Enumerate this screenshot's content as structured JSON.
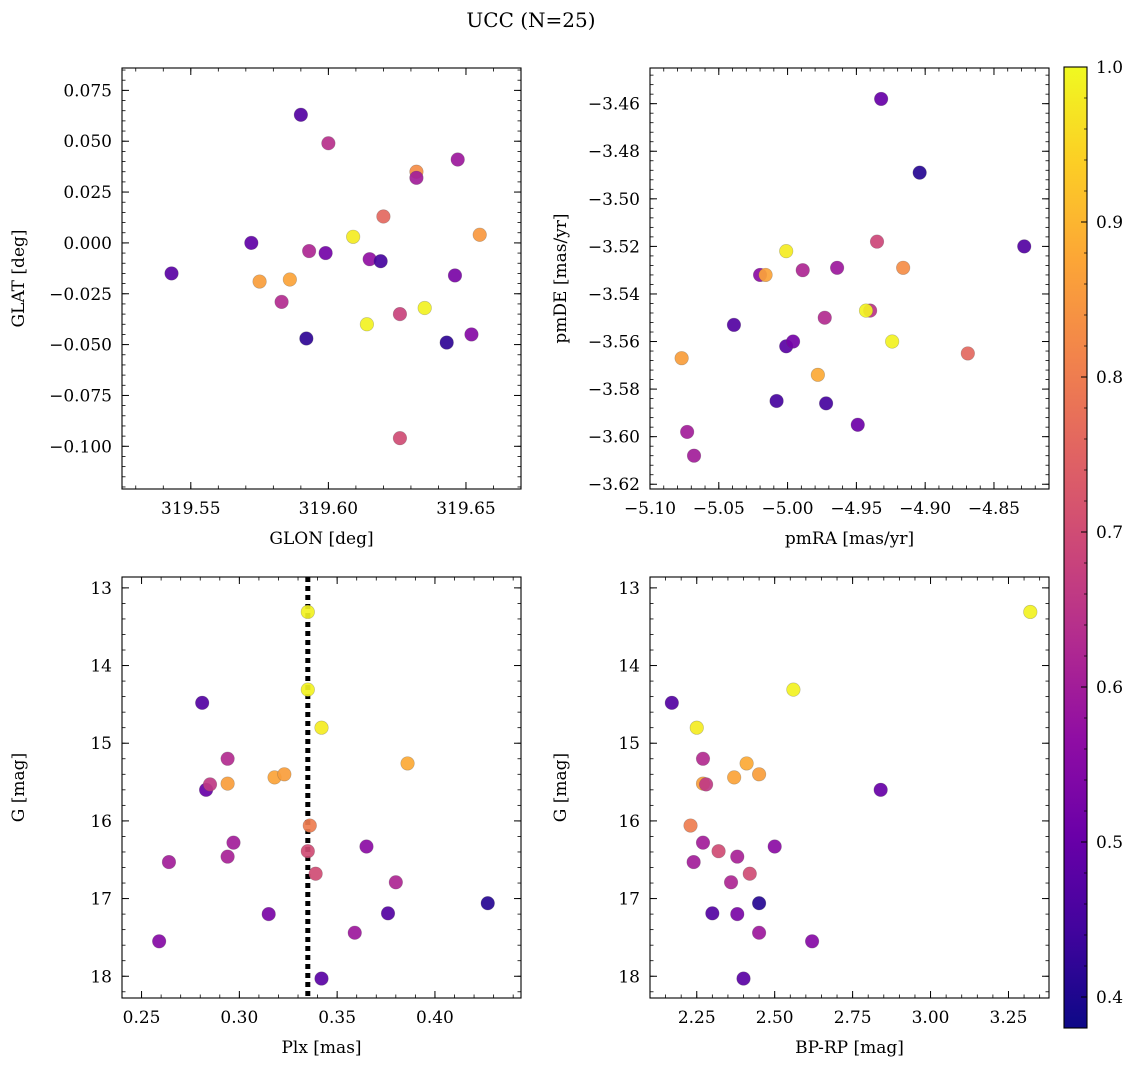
{
  "title": "UCC (N=25)",
  "colorbar": {
    "colormap": "plasma",
    "range": [
      0.38,
      1.0
    ],
    "ticks": [
      0.4,
      0.5,
      0.6,
      0.7,
      0.8,
      0.9,
      1.0
    ],
    "tick_labels": [
      "0.4",
      "0.5",
      "0.6",
      "0.7",
      "0.8",
      "0.9",
      "1.0"
    ]
  },
  "chart_data": [
    {
      "type": "scatter",
      "xlabel": "GLON [deg]",
      "ylabel": "GLAT [deg]",
      "xlim": [
        319.525,
        319.67
      ],
      "ylim": [
        -0.121,
        0.086
      ],
      "x_ticks": [
        319.55,
        319.6,
        319.65
      ],
      "x_tick_labels": [
        "319.55",
        "319.60",
        "319.65"
      ],
      "y_ticks": [
        0.075,
        0.05,
        0.025,
        0.0,
        -0.025,
        -0.05,
        -0.075,
        -0.1
      ],
      "y_tick_labels": [
        "0.075",
        "0.050",
        "0.025",
        "0.000",
        "−0.025",
        "−0.050",
        "−0.075",
        "−0.100"
      ],
      "points": [
        {
          "x": 319.543,
          "y": -0.015,
          "c": 0.48
        },
        {
          "x": 319.572,
          "y": 0.0,
          "c": 0.49
        },
        {
          "x": 319.575,
          "y": -0.019,
          "c": 0.86
        },
        {
          "x": 319.583,
          "y": -0.029,
          "c": 0.63
        },
        {
          "x": 319.586,
          "y": -0.018,
          "c": 0.87
        },
        {
          "x": 319.59,
          "y": 0.063,
          "c": 0.47
        },
        {
          "x": 319.592,
          "y": -0.047,
          "c": 0.42
        },
        {
          "x": 319.593,
          "y": -0.004,
          "c": 0.62
        },
        {
          "x": 319.599,
          "y": -0.005,
          "c": 0.52
        },
        {
          "x": 319.6,
          "y": 0.049,
          "c": 0.64
        },
        {
          "x": 319.609,
          "y": 0.003,
          "c": 0.98
        },
        {
          "x": 319.614,
          "y": -0.04,
          "c": 0.99
        },
        {
          "x": 319.615,
          "y": -0.008,
          "c": 0.57
        },
        {
          "x": 319.619,
          "y": -0.009,
          "c": 0.45
        },
        {
          "x": 319.62,
          "y": 0.013,
          "c": 0.76
        },
        {
          "x": 319.626,
          "y": -0.035,
          "c": 0.68
        },
        {
          "x": 319.626,
          "y": -0.096,
          "c": 0.7
        },
        {
          "x": 319.632,
          "y": 0.035,
          "c": 0.83
        },
        {
          "x": 319.632,
          "y": 0.032,
          "c": 0.6
        },
        {
          "x": 319.635,
          "y": -0.032,
          "c": 0.99
        },
        {
          "x": 319.643,
          "y": -0.049,
          "c": 0.42
        },
        {
          "x": 319.646,
          "y": -0.016,
          "c": 0.53
        },
        {
          "x": 319.647,
          "y": 0.041,
          "c": 0.59
        },
        {
          "x": 319.652,
          "y": -0.045,
          "c": 0.55
        },
        {
          "x": 319.655,
          "y": 0.004,
          "c": 0.85
        }
      ]
    },
    {
      "type": "scatter",
      "xlabel": "pmRA [mas/yr]",
      "ylabel": "pmDE [mas/yr]",
      "xlim": [
        -5.1,
        -4.81
      ],
      "ylim": [
        -3.622,
        -3.445
      ],
      "x_ticks": [
        -5.1,
        -5.05,
        -5.0,
        -4.95,
        -4.9,
        -4.85
      ],
      "x_tick_labels": [
        "−5.10",
        "−5.05",
        "−5.00",
        "−4.95",
        "−4.90",
        "−4.85"
      ],
      "y_ticks": [
        -3.46,
        -3.48,
        -3.5,
        -3.52,
        -3.54,
        -3.56,
        -3.58,
        -3.6,
        -3.62
      ],
      "y_tick_labels": [
        "−3.46",
        "−3.48",
        "−3.50",
        "−3.52",
        "−3.54",
        "−3.56",
        "−3.58",
        "−3.60",
        "−3.62"
      ],
      "points": [
        {
          "x": -5.077,
          "y": -3.567,
          "c": 0.86
        },
        {
          "x": -5.073,
          "y": -3.598,
          "c": 0.6
        },
        {
          "x": -5.068,
          "y": -3.608,
          "c": 0.6
        },
        {
          "x": -5.039,
          "y": -3.553,
          "c": 0.47
        },
        {
          "x": -5.02,
          "y": -3.532,
          "c": 0.56
        },
        {
          "x": -5.016,
          "y": -3.532,
          "c": 0.87
        },
        {
          "x": -5.008,
          "y": -3.585,
          "c": 0.45
        },
        {
          "x": -5.001,
          "y": -3.522,
          "c": 0.98
        },
        {
          "x": -5.001,
          "y": -3.562,
          "c": 0.48
        },
        {
          "x": -4.996,
          "y": -3.56,
          "c": 0.52
        },
        {
          "x": -4.989,
          "y": -3.53,
          "c": 0.62
        },
        {
          "x": -4.978,
          "y": -3.574,
          "c": 0.88
        },
        {
          "x": -4.973,
          "y": -3.55,
          "c": 0.63
        },
        {
          "x": -4.972,
          "y": -3.586,
          "c": 0.45
        },
        {
          "x": -4.964,
          "y": -3.529,
          "c": 0.59
        },
        {
          "x": -4.949,
          "y": -3.595,
          "c": 0.51
        },
        {
          "x": -4.94,
          "y": -3.547,
          "c": 0.65
        },
        {
          "x": -4.943,
          "y": -3.547,
          "c": 0.99
        },
        {
          "x": -4.935,
          "y": -3.518,
          "c": 0.69
        },
        {
          "x": -4.932,
          "y": -3.458,
          "c": 0.5
        },
        {
          "x": -4.924,
          "y": -3.56,
          "c": 0.99
        },
        {
          "x": -4.916,
          "y": -3.529,
          "c": 0.83
        },
        {
          "x": -4.904,
          "y": -3.489,
          "c": 0.41
        },
        {
          "x": -4.869,
          "y": -3.565,
          "c": 0.76
        },
        {
          "x": -4.828,
          "y": -3.52,
          "c": 0.47
        }
      ]
    },
    {
      "type": "scatter",
      "xlabel": "Plx [mas]",
      "ylabel": "G [mag]",
      "xlim": [
        0.24,
        0.444
      ],
      "ylim": [
        18.28,
        12.86
      ],
      "x_ticks": [
        0.25,
        0.3,
        0.35,
        0.4
      ],
      "x_tick_labels": [
        "0.25",
        "0.30",
        "0.35",
        "0.40"
      ],
      "y_ticks": [
        13,
        14,
        15,
        16,
        17,
        18
      ],
      "y_tick_labels": [
        "13",
        "14",
        "15",
        "16",
        "17",
        "18"
      ],
      "reference_line": {
        "x": 0.335,
        "style": "dotted"
      },
      "points": [
        {
          "x": 0.259,
          "y": 17.55,
          "c": 0.55
        },
        {
          "x": 0.264,
          "y": 16.53,
          "c": 0.6
        },
        {
          "x": 0.281,
          "y": 14.48,
          "c": 0.47
        },
        {
          "x": 0.283,
          "y": 15.6,
          "c": 0.5
        },
        {
          "x": 0.285,
          "y": 15.53,
          "c": 0.66
        },
        {
          "x": 0.294,
          "y": 15.2,
          "c": 0.63
        },
        {
          "x": 0.294,
          "y": 15.52,
          "c": 0.86
        },
        {
          "x": 0.294,
          "y": 16.46,
          "c": 0.61
        },
        {
          "x": 0.297,
          "y": 16.28,
          "c": 0.6
        },
        {
          "x": 0.315,
          "y": 17.2,
          "c": 0.53
        },
        {
          "x": 0.318,
          "y": 15.44,
          "c": 0.87
        },
        {
          "x": 0.323,
          "y": 15.4,
          "c": 0.86
        },
        {
          "x": 0.335,
          "y": 13.31,
          "c": 0.99
        },
        {
          "x": 0.335,
          "y": 14.31,
          "c": 0.99
        },
        {
          "x": 0.335,
          "y": 16.39,
          "c": 0.7
        },
        {
          "x": 0.336,
          "y": 16.06,
          "c": 0.8
        },
        {
          "x": 0.339,
          "y": 16.68,
          "c": 0.7
        },
        {
          "x": 0.342,
          "y": 18.03,
          "c": 0.48
        },
        {
          "x": 0.342,
          "y": 14.8,
          "c": 0.98
        },
        {
          "x": 0.359,
          "y": 17.44,
          "c": 0.59
        },
        {
          "x": 0.365,
          "y": 16.33,
          "c": 0.56
        },
        {
          "x": 0.376,
          "y": 17.19,
          "c": 0.47
        },
        {
          "x": 0.38,
          "y": 16.79,
          "c": 0.62
        },
        {
          "x": 0.386,
          "y": 15.26,
          "c": 0.88
        },
        {
          "x": 0.427,
          "y": 17.06,
          "c": 0.41
        }
      ]
    },
    {
      "type": "scatter",
      "xlabel": "BP-RP [mag]",
      "ylabel": "G [mag]",
      "xlim": [
        2.1,
        3.38
      ],
      "ylim": [
        18.28,
        12.86
      ],
      "x_ticks": [
        2.25,
        2.5,
        2.75,
        3.0,
        3.25
      ],
      "x_tick_labels": [
        "2.25",
        "2.50",
        "2.75",
        "3.00",
        "3.25"
      ],
      "y_ticks": [
        13,
        14,
        15,
        16,
        17,
        18
      ],
      "y_tick_labels": [
        "13",
        "14",
        "15",
        "16",
        "17",
        "18"
      ],
      "points": [
        {
          "x": 3.32,
          "y": 13.31,
          "c": 0.99
        },
        {
          "x": 2.56,
          "y": 14.31,
          "c": 0.99
        },
        {
          "x": 2.17,
          "y": 14.48,
          "c": 0.47
        },
        {
          "x": 2.25,
          "y": 14.8,
          "c": 0.98
        },
        {
          "x": 2.27,
          "y": 15.2,
          "c": 0.63
        },
        {
          "x": 2.41,
          "y": 15.26,
          "c": 0.88
        },
        {
          "x": 2.45,
          "y": 15.4,
          "c": 0.86
        },
        {
          "x": 2.37,
          "y": 15.44,
          "c": 0.87
        },
        {
          "x": 2.27,
          "y": 15.52,
          "c": 0.86
        },
        {
          "x": 2.28,
          "y": 15.53,
          "c": 0.66
        },
        {
          "x": 2.84,
          "y": 15.6,
          "c": 0.5
        },
        {
          "x": 2.23,
          "y": 16.06,
          "c": 0.8
        },
        {
          "x": 2.27,
          "y": 16.28,
          "c": 0.6
        },
        {
          "x": 2.5,
          "y": 16.33,
          "c": 0.56
        },
        {
          "x": 2.32,
          "y": 16.39,
          "c": 0.7
        },
        {
          "x": 2.38,
          "y": 16.46,
          "c": 0.61
        },
        {
          "x": 2.24,
          "y": 16.53,
          "c": 0.6
        },
        {
          "x": 2.42,
          "y": 16.68,
          "c": 0.7
        },
        {
          "x": 2.36,
          "y": 16.79,
          "c": 0.62
        },
        {
          "x": 2.45,
          "y": 17.06,
          "c": 0.41
        },
        {
          "x": 2.3,
          "y": 17.19,
          "c": 0.47
        },
        {
          "x": 2.38,
          "y": 17.2,
          "c": 0.53
        },
        {
          "x": 2.45,
          "y": 17.44,
          "c": 0.59
        },
        {
          "x": 2.62,
          "y": 17.55,
          "c": 0.55
        },
        {
          "x": 2.4,
          "y": 18.03,
          "c": 0.48
        }
      ]
    }
  ]
}
